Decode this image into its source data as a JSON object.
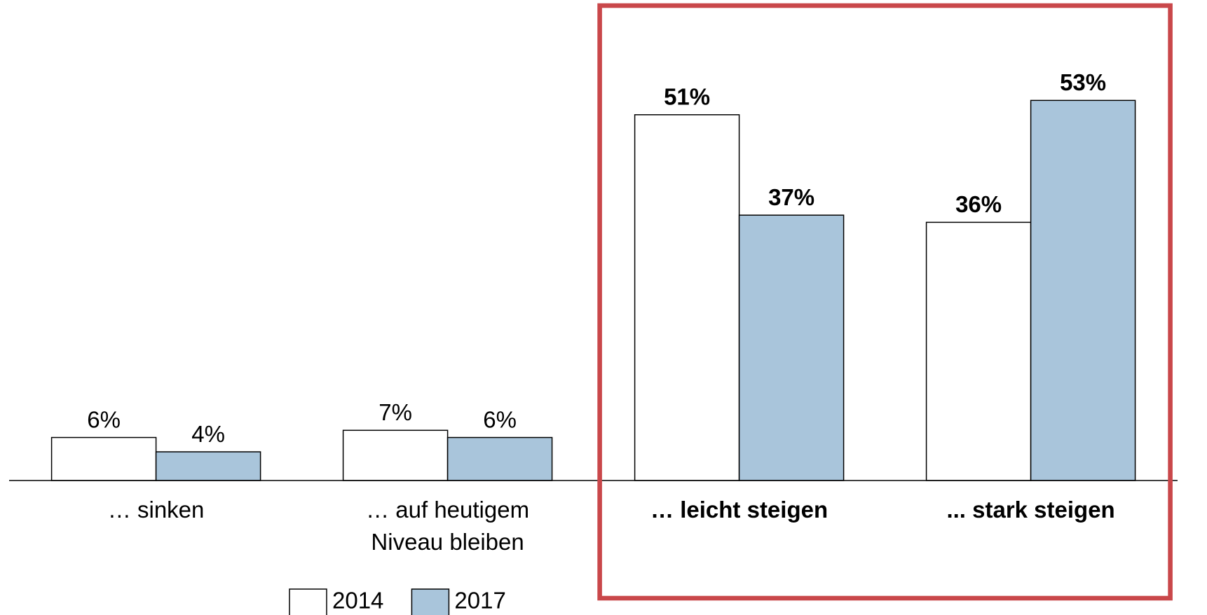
{
  "chart_data": {
    "type": "bar",
    "categories": [
      "… sinken",
      "… auf heutigem\nNiveau bleiben",
      "… leicht steigen",
      "... stark steigen"
    ],
    "series": [
      {
        "name": "2014",
        "color": "#ffffff",
        "values": [
          6,
          7,
          51,
          36
        ],
        "value_labels": [
          "6%",
          "7%",
          "51%",
          "36%"
        ]
      },
      {
        "name": "2017",
        "color": "#a9c5db",
        "values": [
          4,
          6,
          37,
          53
        ],
        "value_labels": [
          "4%",
          "6%",
          "37%",
          "53%"
        ]
      }
    ],
    "ylim": [
      0,
      67
    ],
    "highlighted": [
      2,
      3
    ],
    "highlight_color": "#c9474a",
    "legend": "bottom"
  }
}
